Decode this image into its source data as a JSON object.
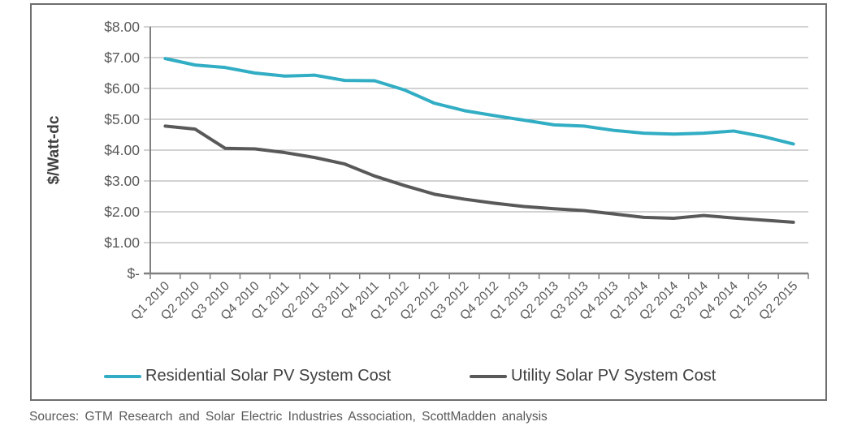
{
  "source_note": "Sources: GTM Research and Solar Electric Industries Association, ScottMadden analysis",
  "colors": {
    "residential_line": "#31adc4",
    "utility_line": "#595959",
    "gridline": "#a6a6a6",
    "axis_line": "#808080",
    "tick_label_text": "#595959",
    "axis_title_text": "#404040",
    "legend_text": "#404040",
    "frame_border": "#6e6e6e"
  },
  "chart_data": {
    "type": "line",
    "title": "",
    "xlabel": "",
    "ylabel": "$/Watt-dc",
    "ylim": [
      0,
      8
    ],
    "y_tick_step": 1,
    "y_tick_labels_top_to_bottom": [
      "$8.00",
      "$7.00",
      "$6.00",
      "$5.00",
      "$4.00",
      "$3.00",
      "$2.00",
      "$1.00",
      "$-"
    ],
    "grid": true,
    "legend_position": "bottom",
    "categories": [
      "Q1 2010",
      "Q2 2010",
      "Q3 2010",
      "Q4 2010",
      "Q1 2011",
      "Q2 2011",
      "Q3 2011",
      "Q4 2011",
      "Q1 2012",
      "Q2 2012",
      "Q3 2012",
      "Q4 2012",
      "Q1 2013",
      "Q2 2013",
      "Q3 2013",
      "Q4 2013",
      "Q1 2014",
      "Q2 2014",
      "Q3 2014",
      "Q4 2014",
      "Q1 2015",
      "Q2 2015"
    ],
    "series": [
      {
        "name": "Residential Solar PV System Cost",
        "color": "#31adc4",
        "values": [
          6.97,
          6.76,
          6.68,
          6.5,
          6.4,
          6.43,
          6.26,
          6.25,
          5.95,
          5.52,
          5.28,
          5.12,
          4.97,
          4.82,
          4.78,
          4.64,
          4.55,
          4.52,
          4.55,
          4.62,
          4.44,
          4.2
        ]
      },
      {
        "name": "Utility Solar PV System Cost",
        "color": "#595959",
        "values": [
          4.78,
          4.68,
          4.06,
          4.04,
          3.92,
          3.76,
          3.55,
          3.16,
          2.85,
          2.57,
          2.41,
          2.28,
          2.17,
          2.1,
          2.04,
          1.93,
          1.82,
          1.79,
          1.88,
          1.8,
          1.73,
          1.66
        ]
      }
    ]
  }
}
